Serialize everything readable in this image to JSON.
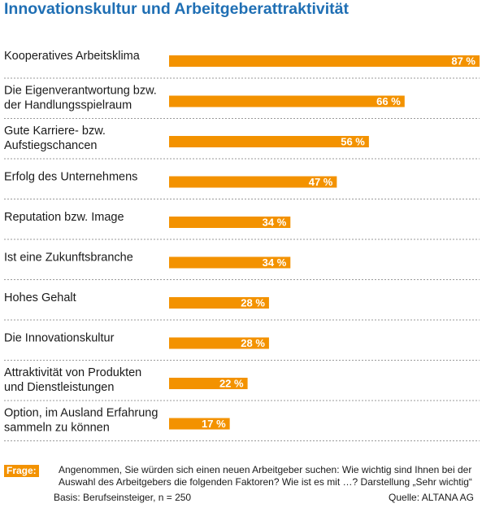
{
  "title": "Innovationskultur und Arbeitgeberattraktivität",
  "chart_data": {
    "type": "bar",
    "orientation": "horizontal",
    "categories": [
      [
        "Kooperatives Arbeitsklima"
      ],
      [
        "Die Eigenverantwortung bzw.",
        "der Handlungsspielraum"
      ],
      [
        "Gute Karriere- bzw.",
        "Aufstiegschancen"
      ],
      [
        "Erfolg des Unternehmens"
      ],
      [
        "Reputation bzw. Image"
      ],
      [
        "Ist eine Zukunftsbranche"
      ],
      [
        "Hohes Gehalt"
      ],
      [
        "Die Innovationskultur"
      ],
      [
        "Attraktivität von Produkten",
        "und Dienstleistungen"
      ],
      [
        "Option, im Ausland Erfahrung",
        "sammeln zu können"
      ]
    ],
    "values": [
      87,
      66,
      56,
      47,
      34,
      34,
      28,
      28,
      22,
      17
    ],
    "value_labels": [
      "87 %",
      "66 %",
      "56 %",
      "47 %",
      "34 %",
      "34 %",
      "28 %",
      "28 %",
      "22 %",
      "17 %"
    ],
    "xlim": [
      0,
      87
    ],
    "bar_color": "#f39200",
    "separator_color": "#7a7a7a",
    "grid": false,
    "legend": "none"
  },
  "footer": {
    "frage_tag": "Frage:",
    "frage_text": "Angenommen, Sie würden sich einen neuen Arbeitgeber suchen: Wie wichtig sind Ihnen bei der Auswahl des Arbeitgebers die folgenden Faktoren? Wie ist es mit …? Darstellung „Sehr wichtig“",
    "basis": "Basis: Berufseinsteiger, n = 250",
    "quelle": "Quelle: ALTANA AG"
  },
  "colors": {
    "title": "#1f6fb4",
    "accent": "#f39200"
  }
}
